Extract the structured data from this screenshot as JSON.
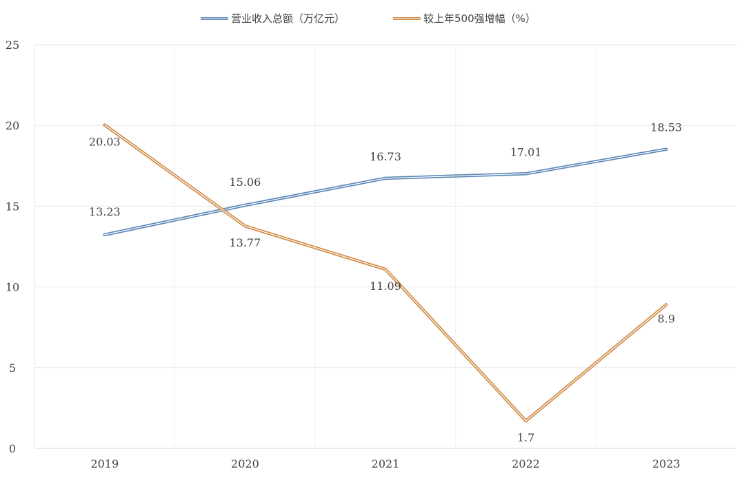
{
  "chart_data": {
    "type": "line",
    "categories": [
      "2019",
      "2020",
      "2021",
      "2022",
      "2023"
    ],
    "ylim": [
      0,
      25
    ],
    "yticks": [
      0,
      5,
      10,
      15,
      20,
      25
    ],
    "grid": true,
    "legend_position": "top",
    "series": [
      {
        "name": "营业收入总额（万亿元）",
        "values": [
          13.23,
          15.06,
          16.73,
          17.01,
          18.53
        ],
        "labels": [
          "13.23",
          "15.06",
          "16.73",
          "17.01",
          "18.53"
        ],
        "color": "#5b86b5"
      },
      {
        "name": "较上年500强增幅（%）",
        "values": [
          20.03,
          13.77,
          11.09,
          1.7,
          8.9
        ],
        "labels": [
          "20.03",
          "13.77",
          "11.09",
          "1.7",
          "8.9"
        ],
        "color": "#d08a45"
      }
    ]
  }
}
